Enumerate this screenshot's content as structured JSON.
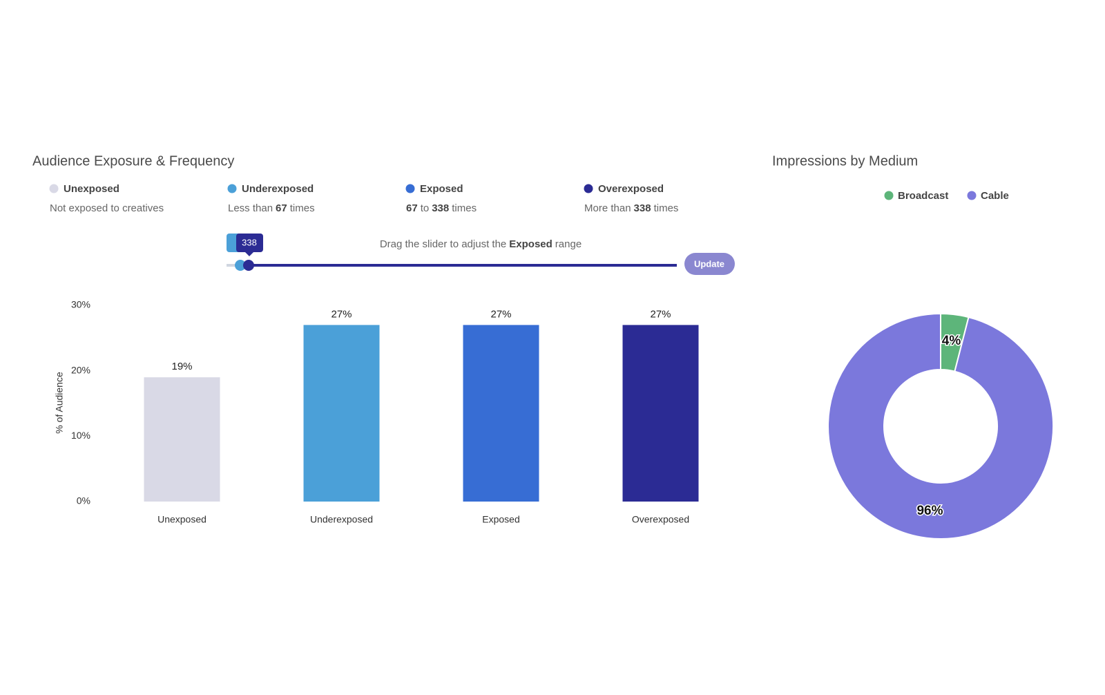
{
  "chart_data": [
    {
      "type": "bar",
      "title": "Audience Exposure & Frequency",
      "y_label": "% of Audience",
      "categories": [
        "Unexposed",
        "Underexposed",
        "Exposed",
        "Overexposed"
      ],
      "values": [
        19,
        27,
        27,
        27
      ],
      "value_labels": [
        "19%",
        "27%",
        "27%",
        "27%"
      ],
      "colors": [
        "#d9d9e6",
        "#4ba0d8",
        "#376dd4",
        "#2b2b94"
      ],
      "ylim": [
        0,
        30
      ],
      "yticks": [
        {
          "value": 0,
          "label": "0%"
        },
        {
          "value": 10,
          "label": "10%"
        },
        {
          "value": 20,
          "label": "20%"
        },
        {
          "value": 30,
          "label": "30%"
        }
      ],
      "descriptions": [
        [
          {
            "text": "Not exposed to creatives"
          }
        ],
        [
          {
            "text": "Less than"
          },
          {
            "text": "67",
            "bold": true
          },
          {
            "text": "times"
          }
        ],
        [
          {
            "text": "67",
            "bold": true
          },
          {
            "text": "to"
          },
          {
            "text": "338",
            "bold": true
          },
          {
            "text": "times"
          }
        ],
        [
          {
            "text": "More than"
          },
          {
            "text": "338",
            "bold": true
          },
          {
            "text": "times"
          }
        ]
      ]
    },
    {
      "type": "donut",
      "title": "Impressions by Medium",
      "categories": [
        "Broadcast",
        "Cable"
      ],
      "values": [
        4,
        96
      ],
      "value_labels": [
        "4%",
        "96%"
      ],
      "colors": [
        "#5db57a",
        "#7b78dc"
      ],
      "legend": "top"
    }
  ],
  "slider": {
    "hint": [
      {
        "text": "Drag the slider to adjust the"
      },
      {
        "text": "Exposed",
        "bold": true
      },
      {
        "text": "range"
      }
    ],
    "tooltip": "338",
    "button": "Update"
  }
}
